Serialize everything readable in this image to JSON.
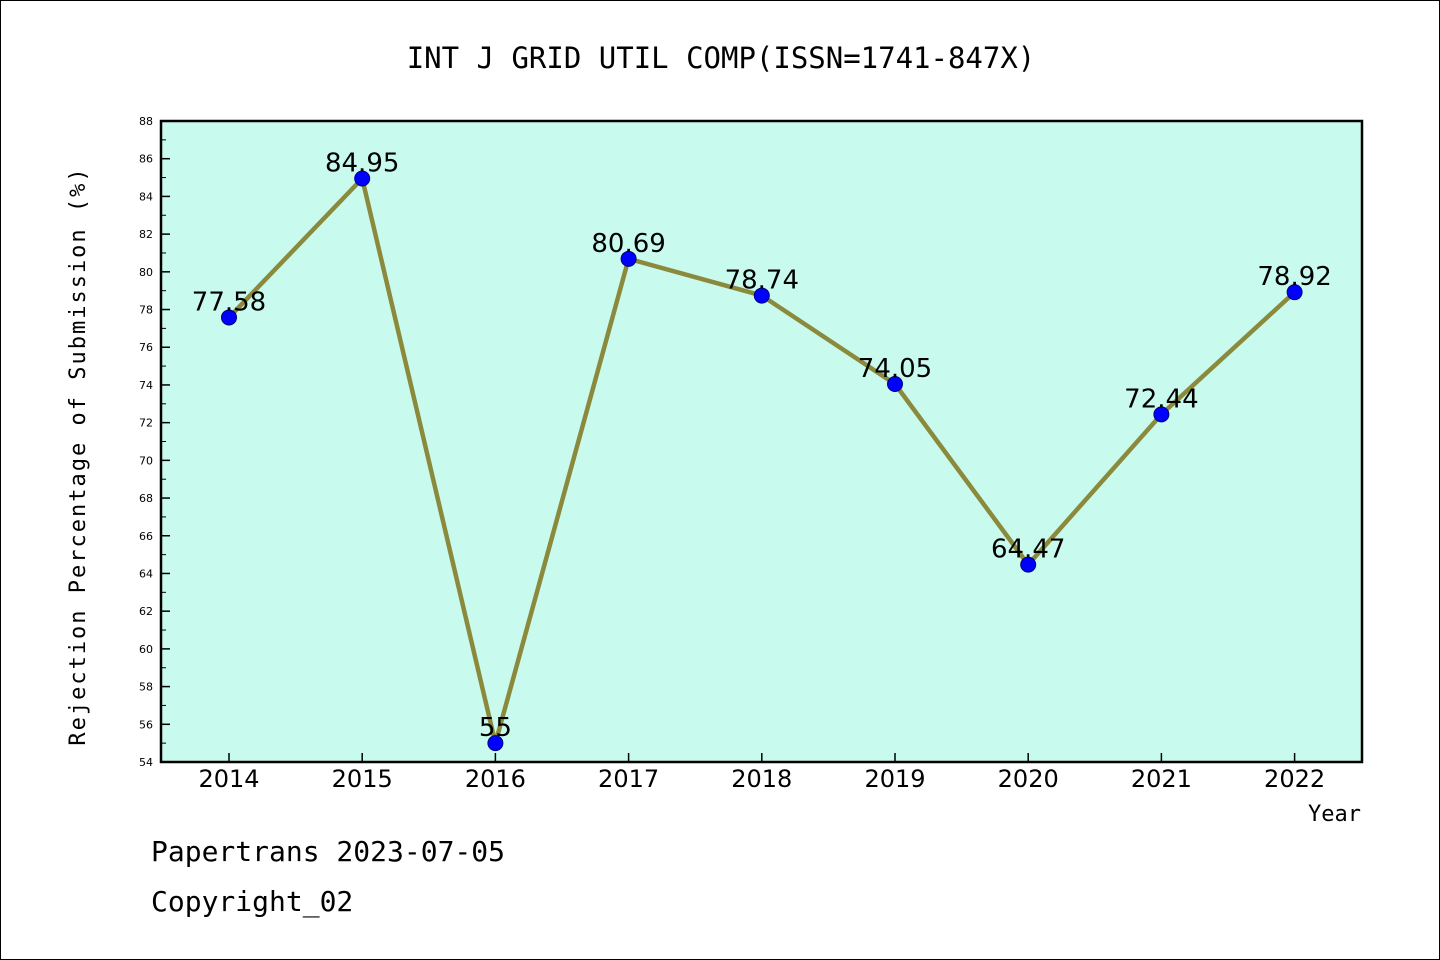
{
  "chart_data": {
    "type": "line",
    "title": "INT J GRID UTIL COMP(ISSN=1741-847X)",
    "xlabel": "Year",
    "ylabel": "Rejection Percentage of Submission (%)",
    "categories": [
      "2014",
      "2015",
      "2016",
      "2017",
      "2018",
      "2019",
      "2020",
      "2021",
      "2022"
    ],
    "series": [
      {
        "values": [
          77.58,
          84.95,
          55,
          80.69,
          78.74,
          74.05,
          64.47,
          72.44,
          78.92
        ],
        "labels": [
          "77.58",
          "84.95",
          "55",
          "80.69",
          "78.74",
          "74.05",
          "64.47",
          "72.44",
          "78.92"
        ]
      }
    ],
    "ylim": [
      54,
      88
    ],
    "yticks": [
      "54",
      "56",
      "58",
      "60",
      "62",
      "64",
      "66",
      "68",
      "70",
      "72",
      "74",
      "76",
      "78",
      "80",
      "82",
      "84",
      "86",
      "88"
    ],
    "grid": false,
    "colors": {
      "plot_background": "#c8fbee",
      "line": "#8b8a3c",
      "marker": "#0000ff"
    }
  },
  "footer": {
    "line1": "Papertrans 2023-07-05",
    "line2": "Copyright_02"
  }
}
